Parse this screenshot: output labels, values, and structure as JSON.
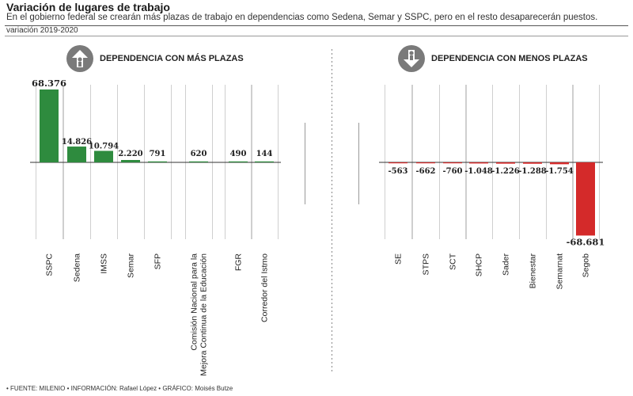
{
  "header": {
    "title": "Variación de lugares de trabajo",
    "subtitle": "En el gobierno federal se crearán más plazas de trabajo en dependencias como Sedena, Semar y SSPC, pero en el resto desaparecerán puestos.",
    "period": "variación 2019-2020"
  },
  "sections": {
    "more": {
      "label": "DEPENDENCIA CON MÁS PLAZAS",
      "icon": "arrow-up-person-icon"
    },
    "less": {
      "label": "DEPENDENCIA CON MENOS PLAZAS",
      "icon": "arrow-down-person-icon"
    }
  },
  "footer": {
    "source": "• FUENTE: MILENIO • INFORMACIÓN: Rafael López • GRÁFICO: Moisés Butze"
  },
  "colors": {
    "positive": "#2e8b3e",
    "negative": "#d42a2a",
    "separator": "#999999",
    "icon_bg": "#7a7a7a"
  },
  "chart_data": {
    "type": "bar",
    "title": "Variación de lugares de trabajo",
    "grid": false,
    "categories": [
      "SSPC",
      "Sedena",
      "IMSS",
      "Semar",
      "SFP",
      "Comisión Nacional para la Mejora Continua de la Educación",
      "FGR",
      "Corredor del Istmo",
      "SE",
      "STPS",
      "SCT",
      "SHCP",
      "Sader",
      "Bienestar",
      "Semarnat",
      "Segob"
    ],
    "values": [
      68376,
      14826,
      10794,
      2220,
      791,
      620,
      490,
      144,
      -563,
      -662,
      -760,
      -1048,
      -1226,
      -1288,
      -1754,
      -68681
    ],
    "value_labels": [
      "68.376",
      "14.826",
      "10.794",
      "2.220",
      "791",
      "620",
      "490",
      "144",
      "-563",
      "-662",
      "-760",
      "-1.048",
      "-1.226",
      "-1.288",
      "-1.754",
      "-68.681"
    ],
    "label_lines": [
      [
        "SSPC"
      ],
      [
        "Sedena"
      ],
      [
        "IMSS"
      ],
      [
        "Semar"
      ],
      [
        "SFP"
      ],
      [
        "Comisión Nacional para la",
        "Mejora Continua de la Educación"
      ],
      [
        "FGR"
      ],
      [
        "Corredor del Istmo"
      ],
      [
        "SE"
      ],
      [
        "STPS"
      ],
      [
        "SCT"
      ],
      [
        "SHCP"
      ],
      [
        "Sader"
      ],
      [
        "Bienestar"
      ],
      [
        "Semarnat"
      ],
      [
        "Segob"
      ]
    ],
    "ylim": [
      -68681,
      68376
    ]
  }
}
